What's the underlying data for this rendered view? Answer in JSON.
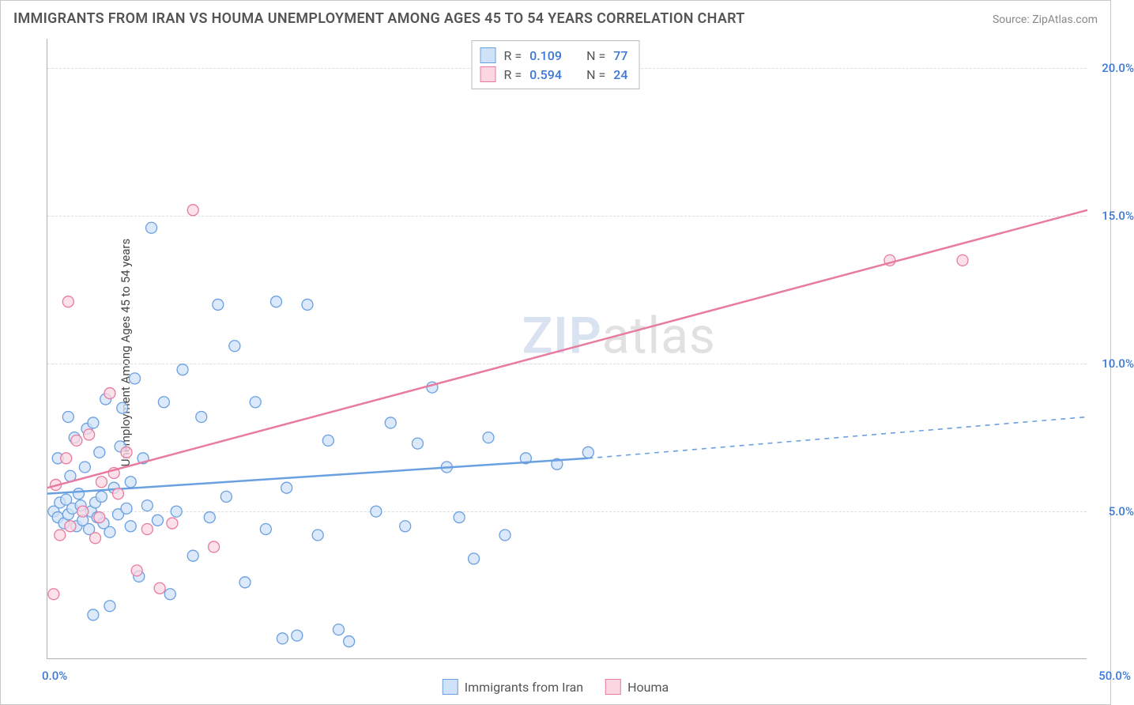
{
  "title": "IMMIGRANTS FROM IRAN VS HOUMA UNEMPLOYMENT AMONG AGES 45 TO 54 YEARS CORRELATION CHART",
  "source_label": "Source: ZipAtlas.com",
  "y_axis_title": "Unemployment Among Ages 45 to 54 years",
  "watermark_left": "ZIP",
  "watermark_right": "atlas",
  "chart": {
    "type": "scatter",
    "background_color": "#ffffff",
    "grid_color": "#dddddd",
    "axis_color": "#b0b0b0",
    "tick_label_color": "#3b78d8",
    "tick_fontsize": 15,
    "xlim": [
      0,
      50
    ],
    "ylim": [
      0,
      21
    ],
    "y_ticks": [
      5,
      10,
      15,
      20
    ],
    "y_tick_labels": [
      "5.0%",
      "10.0%",
      "15.0%",
      "20.0%"
    ],
    "x_tick_left": "0.0%",
    "x_tick_right": "50.0%",
    "marker_radius": 7,
    "marker_stroke_width": 1.3,
    "trend_line_width": 2.5,
    "series": [
      {
        "name": "Immigrants from Iran",
        "fill": "#cfe2f8",
        "stroke": "#6aa0e0",
        "R": "0.109",
        "N": "77",
        "points": [
          [
            0.3,
            5.0
          ],
          [
            0.5,
            4.8
          ],
          [
            0.6,
            5.3
          ],
          [
            0.8,
            4.6
          ],
          [
            0.9,
            5.4
          ],
          [
            1.0,
            4.9
          ],
          [
            1.1,
            6.2
          ],
          [
            1.2,
            5.1
          ],
          [
            1.3,
            7.5
          ],
          [
            1.4,
            4.5
          ],
          [
            1.5,
            5.6
          ],
          [
            1.6,
            5.2
          ],
          [
            1.7,
            4.7
          ],
          [
            1.8,
            6.5
          ],
          [
            1.9,
            7.8
          ],
          [
            2.0,
            4.4
          ],
          [
            2.1,
            5.0
          ],
          [
            2.2,
            8.0
          ],
          [
            2.3,
            5.3
          ],
          [
            2.4,
            4.8
          ],
          [
            2.5,
            7.0
          ],
          [
            2.6,
            5.5
          ],
          [
            2.7,
            4.6
          ],
          [
            2.8,
            8.8
          ],
          [
            3.0,
            4.3
          ],
          [
            3.2,
            5.8
          ],
          [
            3.4,
            4.9
          ],
          [
            3.6,
            8.5
          ],
          [
            3.8,
            5.1
          ],
          [
            4.0,
            4.5
          ],
          [
            4.2,
            9.5
          ],
          [
            4.4,
            2.8
          ],
          [
            4.6,
            6.8
          ],
          [
            4.8,
            5.2
          ],
          [
            5.0,
            14.6
          ],
          [
            5.3,
            4.7
          ],
          [
            5.6,
            8.7
          ],
          [
            5.9,
            2.2
          ],
          [
            6.2,
            5.0
          ],
          [
            6.5,
            9.8
          ],
          [
            7.0,
            3.5
          ],
          [
            7.4,
            8.2
          ],
          [
            7.8,
            4.8
          ],
          [
            8.2,
            12.0
          ],
          [
            8.6,
            5.5
          ],
          [
            9.0,
            10.6
          ],
          [
            9.5,
            2.6
          ],
          [
            10.0,
            8.7
          ],
          [
            10.5,
            4.4
          ],
          [
            11.0,
            12.1
          ],
          [
            11.5,
            5.8
          ],
          [
            12.0,
            0.8
          ],
          [
            12.5,
            12.0
          ],
          [
            13.0,
            4.2
          ],
          [
            13.5,
            7.4
          ],
          [
            14.0,
            1.0
          ],
          [
            14.5,
            0.6
          ],
          [
            11.3,
            0.7
          ],
          [
            3.0,
            1.8
          ],
          [
            2.2,
            1.5
          ],
          [
            15.8,
            5.0
          ],
          [
            16.5,
            8.0
          ],
          [
            17.2,
            4.5
          ],
          [
            17.8,
            7.3
          ],
          [
            18.5,
            9.2
          ],
          [
            19.2,
            6.5
          ],
          [
            19.8,
            4.8
          ],
          [
            20.5,
            3.4
          ],
          [
            21.2,
            7.5
          ],
          [
            22.0,
            4.2
          ],
          [
            23.0,
            6.8
          ],
          [
            24.5,
            6.6
          ],
          [
            26.0,
            7.0
          ],
          [
            3.5,
            7.2
          ],
          [
            4.0,
            6.0
          ],
          [
            1.0,
            8.2
          ],
          [
            0.5,
            6.8
          ]
        ],
        "trend_start": [
          0,
          5.6
        ],
        "trend_end": [
          26,
          6.8
        ],
        "trend_dash_end": [
          50,
          8.2
        ]
      },
      {
        "name": "Houma",
        "fill": "#fcd7e1",
        "stroke": "#e77ba0",
        "R": "0.594",
        "N": "24",
        "points": [
          [
            0.4,
            5.9
          ],
          [
            0.6,
            4.2
          ],
          [
            0.9,
            6.8
          ],
          [
            1.1,
            4.5
          ],
          [
            1.4,
            7.4
          ],
          [
            1.7,
            5.0
          ],
          [
            2.0,
            7.6
          ],
          [
            2.3,
            4.1
          ],
          [
            2.6,
            6.0
          ],
          [
            3.0,
            9.0
          ],
          [
            3.4,
            5.6
          ],
          [
            3.8,
            7.0
          ],
          [
            4.3,
            3.0
          ],
          [
            4.8,
            4.4
          ],
          [
            5.4,
            2.4
          ],
          [
            6.0,
            4.6
          ],
          [
            7.0,
            15.2
          ],
          [
            8.0,
            3.8
          ],
          [
            0.3,
            2.2
          ],
          [
            1.0,
            12.1
          ],
          [
            2.5,
            4.8
          ],
          [
            3.2,
            6.3
          ],
          [
            40.5,
            13.5
          ],
          [
            44.0,
            13.5
          ]
        ],
        "trend_start": [
          0,
          5.8
        ],
        "trend_end": [
          50,
          15.2
        ]
      }
    ]
  },
  "legend_R_label": "R =",
  "legend_N_label": "N ="
}
